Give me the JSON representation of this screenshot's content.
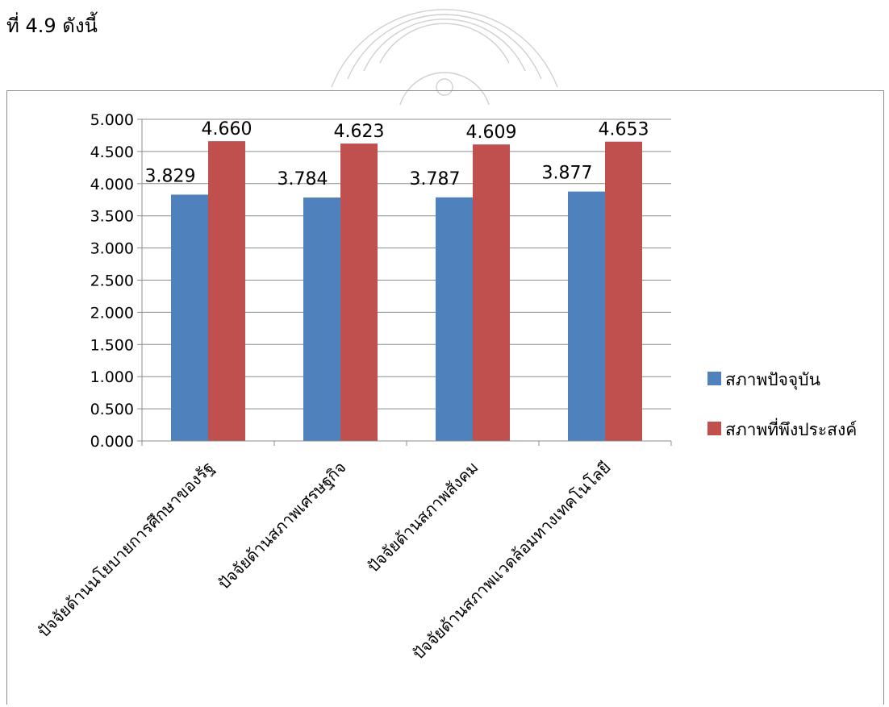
{
  "page": {
    "heading": "ที่ 4.9 ดังนี้"
  },
  "colors": {
    "current": "#4f81bd",
    "desired": "#c0504d",
    "grid": "#8c8c8c",
    "axis": "#8c8c8c"
  },
  "chart_data": {
    "type": "bar",
    "title": "",
    "xlabel": "",
    "ylabel": "",
    "ylim": [
      0,
      5
    ],
    "y_ticks": [
      "0.000",
      "0.500",
      "1.000",
      "1.500",
      "2.000",
      "2.500",
      "3.000",
      "3.500",
      "4.000",
      "4.500",
      "5.000"
    ],
    "grid": true,
    "legend_position": "right",
    "categories": [
      "ปัจจัยด้านนโยบายการศึกษาของรัฐ",
      "ปัจจัยด้านสภาพเศรษฐกิจ",
      "ปัจจัยด้านสภาพสังคม",
      "ปัจจัยด้านสภาพแวดล้อมทางเทคโนโลยี"
    ],
    "series": [
      {
        "name": "สภาพปัจจุบัน",
        "values": [
          3.829,
          3.784,
          3.787,
          3.877
        ],
        "labels": [
          "3.829",
          "3.784",
          "3.787",
          "3.877"
        ]
      },
      {
        "name": "สภาพที่พึงประสงค์",
        "values": [
          4.66,
          4.623,
          4.609,
          4.653
        ],
        "labels": [
          "4.660",
          "4.623",
          "4.609",
          "4.653"
        ]
      }
    ]
  }
}
